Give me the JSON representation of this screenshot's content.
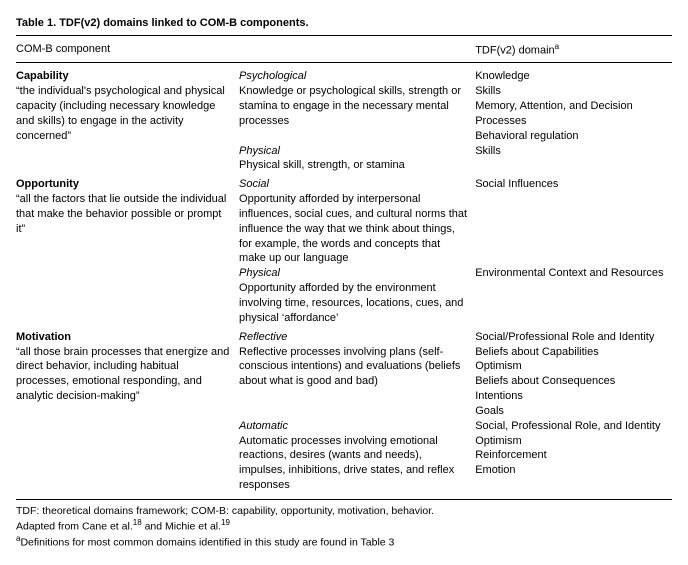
{
  "title": "Table 1.  TDF(v2) domains linked to COM-B components.",
  "headers": {
    "col1": "COM-B component",
    "col3": "TDF(v2) domain"
  },
  "sup_a": "a",
  "sections": [
    {
      "name": "Capability",
      "definition": "“the individual's psychological and physical capacity (including necessary knowledge and skills) to engage in the activity concerned”",
      "subs": [
        {
          "label": "Psychological",
          "desc": "Knowledge or psychological skills, strength or stamina to engage in the necessary mental processes",
          "domains": [
            "Knowledge",
            "Skills",
            "Memory, Attention, and Decision Processes",
            "Behavioral regulation"
          ]
        },
        {
          "label": "Physical",
          "desc": "Physical skill, strength, or stamina",
          "domains": [
            "Skills"
          ]
        }
      ]
    },
    {
      "name": "Opportunity",
      "definition": "“all the factors that lie outside the individual that make the behavior possible or prompt it”",
      "subs": [
        {
          "label": "Social",
          "desc": "Opportunity afforded by interpersonal influences, social cues, and cultural norms that influence the way that we think about things, for example, the words and concepts that make up our language",
          "domains": [
            "Social Influences"
          ]
        },
        {
          "label": "Physical",
          "desc": "Opportunity afforded by the environment involving time, resources, locations, cues, and physical ‘affordance’",
          "domains": [
            "Environmental Context and Resources"
          ]
        }
      ]
    },
    {
      "name": "Motivation",
      "definition": "“all those brain processes that energize and direct behavior, including habitual processes, emotional responding, and analytic decision-making”",
      "subs": [
        {
          "label": "Reflective",
          "desc": "Reflective processes involving plans (self-conscious intentions) and evaluations (beliefs about what is good and bad)",
          "domains": [
            "Social/Professional Role and Identity",
            "Beliefs about Capabilities",
            "Optimism",
            "Beliefs about Consequences",
            "Intentions",
            "Goals"
          ]
        },
        {
          "label": "Automatic",
          "desc": "Automatic processes involving emotional reactions, desires (wants and needs), impulses, inhibitions, drive states, and reflex responses",
          "domains": [
            "Social, Professional Role, and Identity",
            "Optimism",
            "Reinforcement",
            "Emotion"
          ]
        }
      ]
    }
  ],
  "footer": {
    "line1": "TDF: theoretical domains framework; COM-B: capability, opportunity, motivation, behavior.",
    "line2a": "Adapted from Cane et al.",
    "sup18": "18",
    "line2b": " and Michie et al.",
    "sup19": "19",
    "line3": "Definitions for most common domains identified in this study are found in Table 3"
  }
}
